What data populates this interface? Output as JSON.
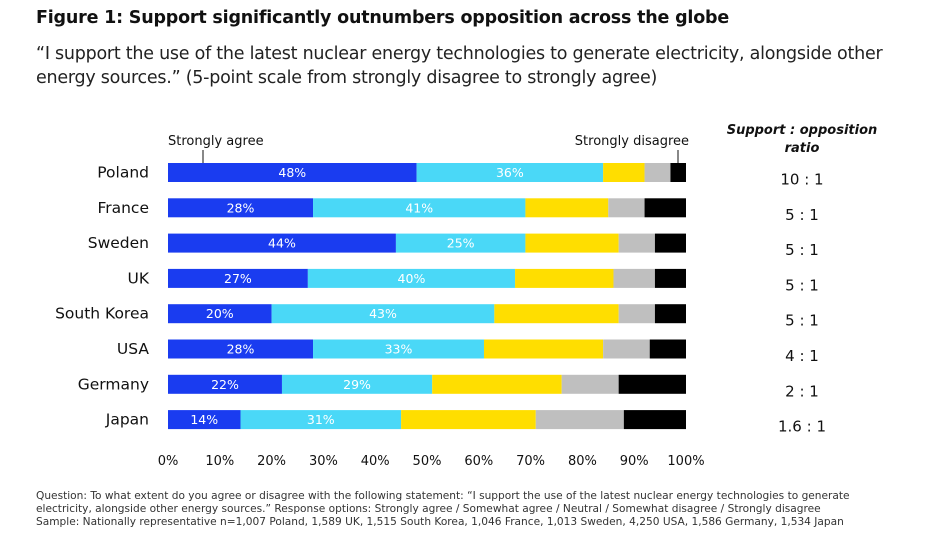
{
  "figure": {
    "title": "Figure 1: Support significantly outnumbers opposition across the globe",
    "subtitle": "“I support the use of the latest nuclear energy technologies to generate electricity, alongside other energy sources.” (5-point scale from strongly disagree to strongly agree)"
  },
  "chart_data": {
    "type": "bar",
    "orientation": "horizontal-stacked-100",
    "categories": [
      "Poland",
      "France",
      "Sweden",
      "UK",
      "South Korea",
      "USA",
      "Germany",
      "Japan"
    ],
    "series": [
      {
        "name": "Strongly agree",
        "color": "#1a3cf0",
        "values": [
          48,
          28,
          44,
          27,
          20,
          28,
          22,
          14
        ]
      },
      {
        "name": "Somewhat agree",
        "color": "#4ad8f7",
        "values": [
          36,
          41,
          25,
          40,
          43,
          33,
          29,
          31
        ]
      },
      {
        "name": "Neutral",
        "color": "#ffde00",
        "values": [
          8,
          16,
          18,
          19,
          24,
          23,
          25,
          26
        ]
      },
      {
        "name": "Somewhat disagree",
        "color": "#bfbfbf",
        "values": [
          5,
          7,
          7,
          8,
          7,
          9,
          11,
          17
        ]
      },
      {
        "name": "Strongly disagree",
        "color": "#000000",
        "values": [
          3,
          8,
          6,
          6,
          6,
          7,
          13,
          12
        ]
      }
    ],
    "labeled_series": [
      "Strongly agree",
      "Somewhat agree"
    ],
    "value_suffix": "%",
    "xlim": [
      0,
      100
    ],
    "xticks": [
      "0%",
      "10%",
      "20%",
      "30%",
      "40%",
      "50%",
      "60%",
      "70%",
      "80%",
      "90%",
      "100%"
    ],
    "annotations": {
      "left": "Strongly agree",
      "right": "Strongly disagree"
    },
    "ratio_column": {
      "header_bold": "Support : ",
      "header_italic": "opposition",
      "header_line2": "ratio",
      "values": [
        "10 : 1",
        "5 : 1",
        "5 : 1",
        "5 : 1",
        "5 : 1",
        "4 : 1",
        "2 : 1",
        "1.6 : 1"
      ]
    }
  },
  "footnote": {
    "question_line1": "Question: To what extent do you agree or disagree with the following statement: “I support the use of the latest nuclear energy technologies to generate",
    "question_line2": "electricity, alongside other energy sources.” Response options: Strongly agree / Somewhat agree / Neutral / Somewhat disagree / Strongly disagree",
    "sample": "Sample: Nationally representative n=1,007 Poland, 1,589 UK, 1,515 South Korea, 1,046 France, 1,013 Sweden, 4,250 USA, 1,586 Germany, 1,534 Japan"
  }
}
